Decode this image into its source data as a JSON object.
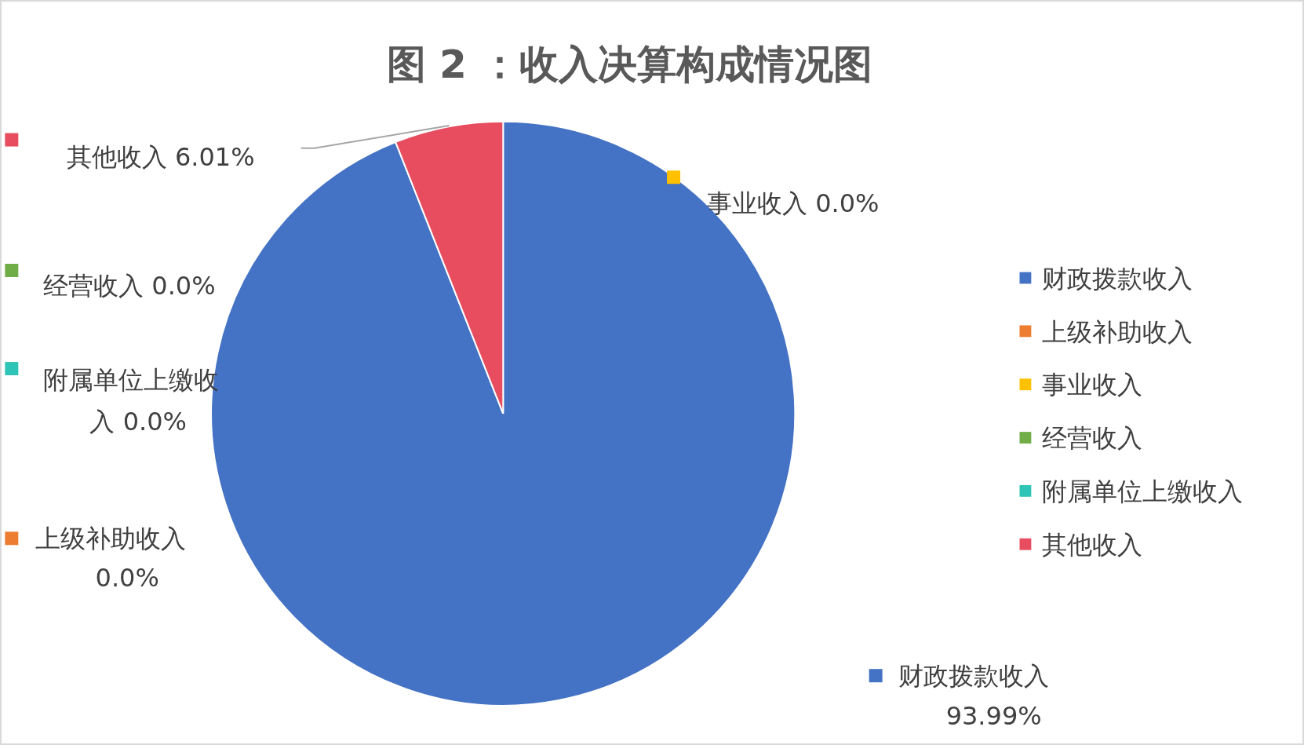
{
  "chart_data": {
    "type": "pie",
    "title": "图 2 ：收入决算构成情况图",
    "categories": [
      "财政拨款收入",
      "上级补助收入",
      "事业收入",
      "经营收入",
      "附属单位上缴收入",
      "其他收入"
    ],
    "values": [
      93.99,
      0.0,
      0.0,
      0.0,
      0.0,
      6.01
    ],
    "colors": [
      "#4472c4",
      "#ed7d31",
      "#ffc000",
      "#70ad47",
      "#2ec4b6",
      "#e84c5f"
    ],
    "value_labels": [
      "93.99%",
      "0.0%",
      "0.0%",
      "0.0%",
      "0.0%",
      "6.01%"
    ],
    "legend": "right"
  }
}
